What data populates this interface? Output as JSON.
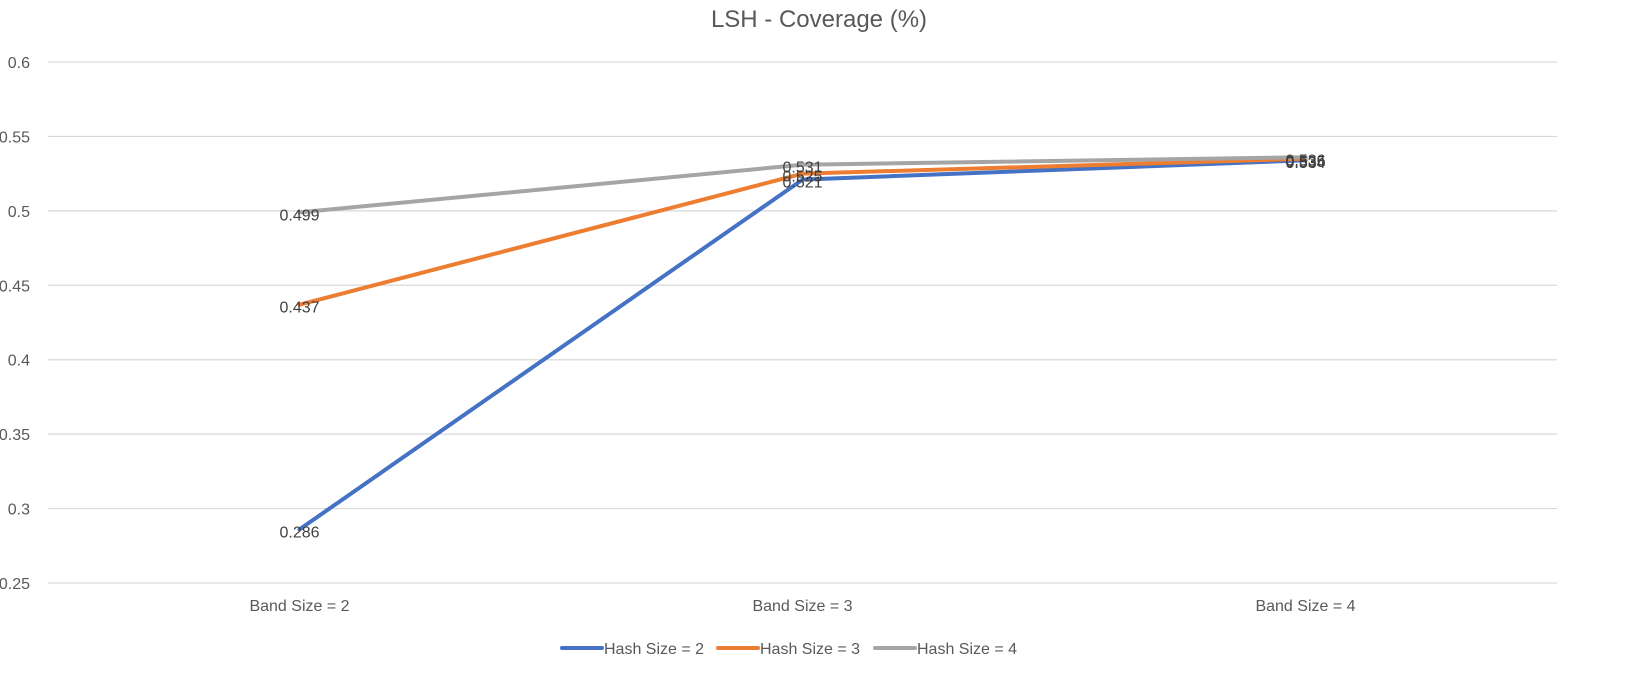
{
  "chart_data": {
    "type": "line",
    "title": "LSH - Coverage (%)",
    "xlabel": "",
    "ylabel": "",
    "categories": [
      "Band Size = 2",
      "Band Size = 3",
      "Band Size = 4"
    ],
    "ylim": [
      0.25,
      0.6
    ],
    "yticks": [
      0.25,
      0.3,
      0.35,
      0.4,
      0.45,
      0.5,
      0.55,
      0.6
    ],
    "ytick_labels": [
      "0.25",
      "0.3",
      "0.35",
      "0.4",
      "0.45",
      "0.5",
      "0.55",
      "0.6"
    ],
    "grid": true,
    "legend_position": "bottom",
    "series": [
      {
        "name": "Hash Size = 2",
        "color": "#4472C4",
        "values": [
          0.286,
          0.521,
          0.534
        ],
        "labels": [
          "0.286",
          "0.521",
          "0.534"
        ]
      },
      {
        "name": "Hash Size = 3",
        "color": "#ED7D31",
        "values": [
          0.437,
          0.525,
          0.535
        ],
        "labels": [
          "0.437",
          "0.525",
          "0.535"
        ]
      },
      {
        "name": "Hash Size = 4",
        "color": "#A5A5A5",
        "values": [
          0.499,
          0.531,
          0.536
        ],
        "labels": [
          "0.499",
          "0.531",
          "0.536"
        ]
      }
    ]
  }
}
